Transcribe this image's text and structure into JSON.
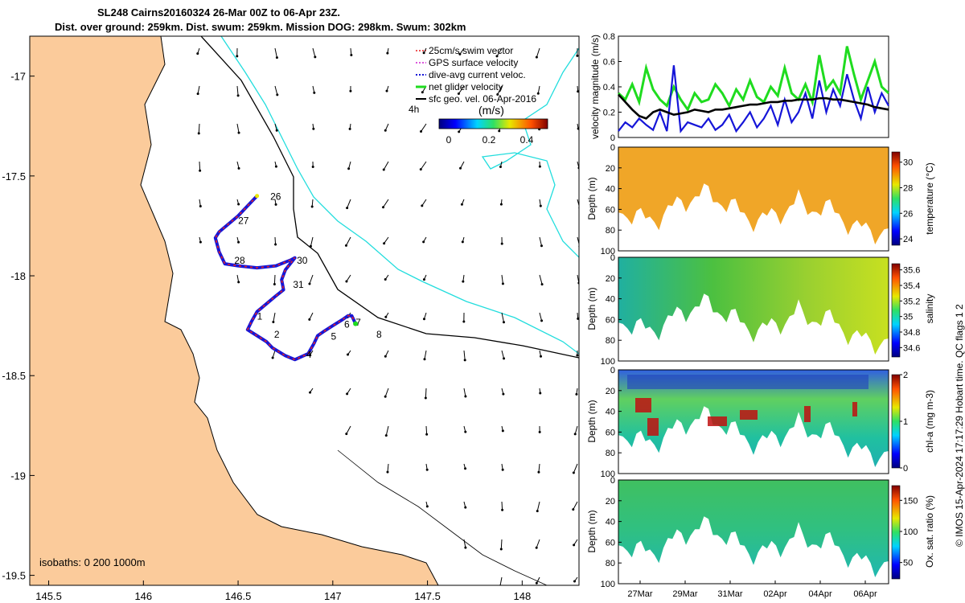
{
  "titles": {
    "line1": "SL248 Cairns20160324 26-Mar 00Z to 06-Apr 23Z.",
    "line2": "Dist. over ground: 259km. Dist. swum: 259km. Mission DOG: 298km. Swum: 302km"
  },
  "footer_note": "© IMOS 15-Apr-2024 17:17:29 Hobart time. QC flags 1  2",
  "colors": {
    "land": "#fbcb9b",
    "track": "#1515d8",
    "swim_vector": "#e82020",
    "gps_velocity": "#d020d0",
    "net_velocity": "#1fdc1f",
    "coast_isobath": "#22dddd",
    "ssh_line": "#000000"
  },
  "chart_data": [
    {
      "type": "scatter",
      "name": "map",
      "xlabel": "",
      "ylabel": "",
      "xlim": [
        145.4,
        148.3
      ],
      "ylim": [
        -19.55,
        -16.8
      ],
      "x_ticks": [
        "145.5",
        "146",
        "146.5",
        "147",
        "147.5",
        "148"
      ],
      "y_ticks": [
        "-17",
        "-17.5",
        "-18",
        "-18.5",
        "-19",
        "-19.5"
      ],
      "legend": {
        "placement": "top-right",
        "entries": [
          "25cm/s swim vector",
          "GPS surface velocity",
          "dive-avg current veloc.",
          "net glider velocity",
          "sfc geo. vel. 06-Apr-2016"
        ]
      },
      "colorbar": {
        "label": "(m/s)",
        "ticks": [
          "0",
          "0.2",
          "0.4"
        ],
        "range": [
          0,
          0.5
        ],
        "note": "4h"
      },
      "isobath_note": "isobaths: 0   200  1000m",
      "day_labels": [
        {
          "label": "26",
          "lon": 146.67,
          "lat": -17.62
        },
        {
          "label": "27",
          "lon": 146.5,
          "lat": -17.74
        },
        {
          "label": "28",
          "lon": 146.48,
          "lat": -17.94
        },
        {
          "label": "30",
          "lon": 146.81,
          "lat": -17.94
        },
        {
          "label": "31",
          "lon": 146.79,
          "lat": -18.06
        },
        {
          "label": "1",
          "lon": 146.6,
          "lat": -18.22
        },
        {
          "label": "2",
          "lon": 146.69,
          "lat": -18.31
        },
        {
          "label": "4",
          "lon": 146.86,
          "lat": -18.41
        },
        {
          "label": "5",
          "lon": 146.99,
          "lat": -18.32
        },
        {
          "label": "6",
          "lon": 147.06,
          "lat": -18.26
        },
        {
          "label": "7",
          "lon": 147.12,
          "lat": -18.25
        },
        {
          "label": "8",
          "lon": 147.23,
          "lat": -18.31
        }
      ],
      "glider_track": [
        [
          146.6,
          -17.6
        ],
        [
          146.55,
          -17.65
        ],
        [
          146.5,
          -17.7
        ],
        [
          146.45,
          -17.74
        ],
        [
          146.4,
          -17.78
        ],
        [
          146.38,
          -17.81
        ],
        [
          146.4,
          -17.88
        ],
        [
          146.43,
          -17.94
        ],
        [
          146.5,
          -17.95
        ],
        [
          146.6,
          -17.96
        ],
        [
          146.7,
          -17.95
        ],
        [
          146.78,
          -17.92
        ],
        [
          146.8,
          -17.91
        ],
        [
          146.75,
          -17.97
        ],
        [
          146.73,
          -18.02
        ],
        [
          146.74,
          -18.07
        ],
        [
          146.7,
          -18.1
        ],
        [
          146.65,
          -18.14
        ],
        [
          146.6,
          -18.18
        ],
        [
          146.57,
          -18.23
        ],
        [
          146.55,
          -18.27
        ],
        [
          146.6,
          -18.3
        ],
        [
          146.65,
          -18.33
        ],
        [
          146.68,
          -18.36
        ],
        [
          146.75,
          -18.4
        ],
        [
          146.8,
          -18.42
        ],
        [
          146.87,
          -18.39
        ],
        [
          146.9,
          -18.34
        ],
        [
          146.92,
          -18.3
        ],
        [
          146.95,
          -18.28
        ],
        [
          147.0,
          -18.25
        ],
        [
          147.05,
          -18.22
        ],
        [
          147.08,
          -18.2
        ],
        [
          147.1,
          -18.2
        ],
        [
          147.12,
          -18.24
        ]
      ]
    },
    {
      "type": "line",
      "name": "velocity magnitude",
      "ylabel": "velocity magnitude (m/s)",
      "ylim": [
        0,
        0.8
      ],
      "y_ticks": [
        "0",
        "0.2",
        "0.4",
        "0.6",
        "0.8"
      ],
      "series": [
        {
          "color": "green",
          "values": [
            0.35,
            0.3,
            0.42,
            0.28,
            0.55,
            0.38,
            0.3,
            0.25,
            0.4,
            0.3,
            0.22,
            0.35,
            0.28,
            0.3,
            0.42,
            0.35,
            0.25,
            0.38,
            0.3,
            0.45,
            0.32,
            0.28,
            0.4,
            0.33,
            0.55,
            0.35,
            0.3,
            0.42,
            0.28,
            0.65,
            0.38,
            0.45,
            0.35,
            0.72,
            0.5,
            0.3,
            0.45,
            0.6,
            0.4,
            0.35
          ]
        },
        {
          "color": "blue",
          "values": [
            0.05,
            0.12,
            0.08,
            0.15,
            0.1,
            0.06,
            0.2,
            0.05,
            0.57,
            0.05,
            0.12,
            0.1,
            0.08,
            0.15,
            0.06,
            0.1,
            0.18,
            0.05,
            0.12,
            0.2,
            0.08,
            0.15,
            0.25,
            0.1,
            0.3,
            0.12,
            0.2,
            0.35,
            0.15,
            0.45,
            0.2,
            0.38,
            0.25,
            0.5,
            0.3,
            0.15,
            0.4,
            0.2,
            0.35,
            0.25
          ]
        },
        {
          "color": "black",
          "values": [
            0.34,
            0.28,
            0.22,
            0.17,
            0.15,
            0.2,
            0.22,
            0.2,
            0.18,
            0.19,
            0.2,
            0.22,
            0.21,
            0.2,
            0.22,
            0.22,
            0.23,
            0.24,
            0.25,
            0.26,
            0.26,
            0.27,
            0.28,
            0.28,
            0.29,
            0.29,
            0.3,
            0.3,
            0.3,
            0.31,
            0.31,
            0.3,
            0.3,
            0.29,
            0.28,
            0.27,
            0.26,
            0.24,
            0.23,
            0.22
          ]
        }
      ]
    },
    {
      "type": "heatmap",
      "name": "temperature",
      "ylabel": "Depth (m)",
      "ylim": [
        0,
        100
      ],
      "y_ticks": [
        "0",
        "20",
        "40",
        "60",
        "80",
        "100"
      ],
      "colorbar_label": "temperature (°C)",
      "colorbar_ticks": [
        "24",
        "26",
        "28",
        "30"
      ],
      "clim": [
        23.5,
        30.8
      ]
    },
    {
      "type": "heatmap",
      "name": "salinity",
      "ylabel": "Depth (m)",
      "ylim": [
        0,
        100
      ],
      "y_ticks": [
        "0",
        "20",
        "40",
        "60",
        "80",
        "100"
      ],
      "colorbar_label": "salinity",
      "colorbar_ticks": [
        "34.6",
        "34.8",
        "35",
        "35.2",
        "35.4",
        "35.6"
      ],
      "clim": [
        34.5,
        35.7
      ]
    },
    {
      "type": "heatmap",
      "name": "chl-a",
      "ylabel": "Depth (m)",
      "ylim": [
        0,
        100
      ],
      "y_ticks": [
        "0",
        "20",
        "40",
        "60",
        "80",
        "100"
      ],
      "colorbar_label": "chl-a (mg m-3)",
      "colorbar_ticks": [
        "0",
        "1",
        "2"
      ],
      "clim": [
        0,
        2
      ]
    },
    {
      "type": "heatmap",
      "name": "oxygen",
      "ylabel": "Depth (m)",
      "ylim": [
        0,
        100
      ],
      "y_ticks": [
        "0",
        "20",
        "40",
        "60",
        "80",
        "100"
      ],
      "x_ticks": [
        "27Mar",
        "29Mar",
        "31Mar",
        "02Apr",
        "04Apr",
        "06Apr"
      ],
      "colorbar_label": "Ox. sat. ratio (%)",
      "colorbar_ticks": [
        "50",
        "100",
        "150"
      ],
      "clim": [
        25,
        175
      ]
    }
  ]
}
